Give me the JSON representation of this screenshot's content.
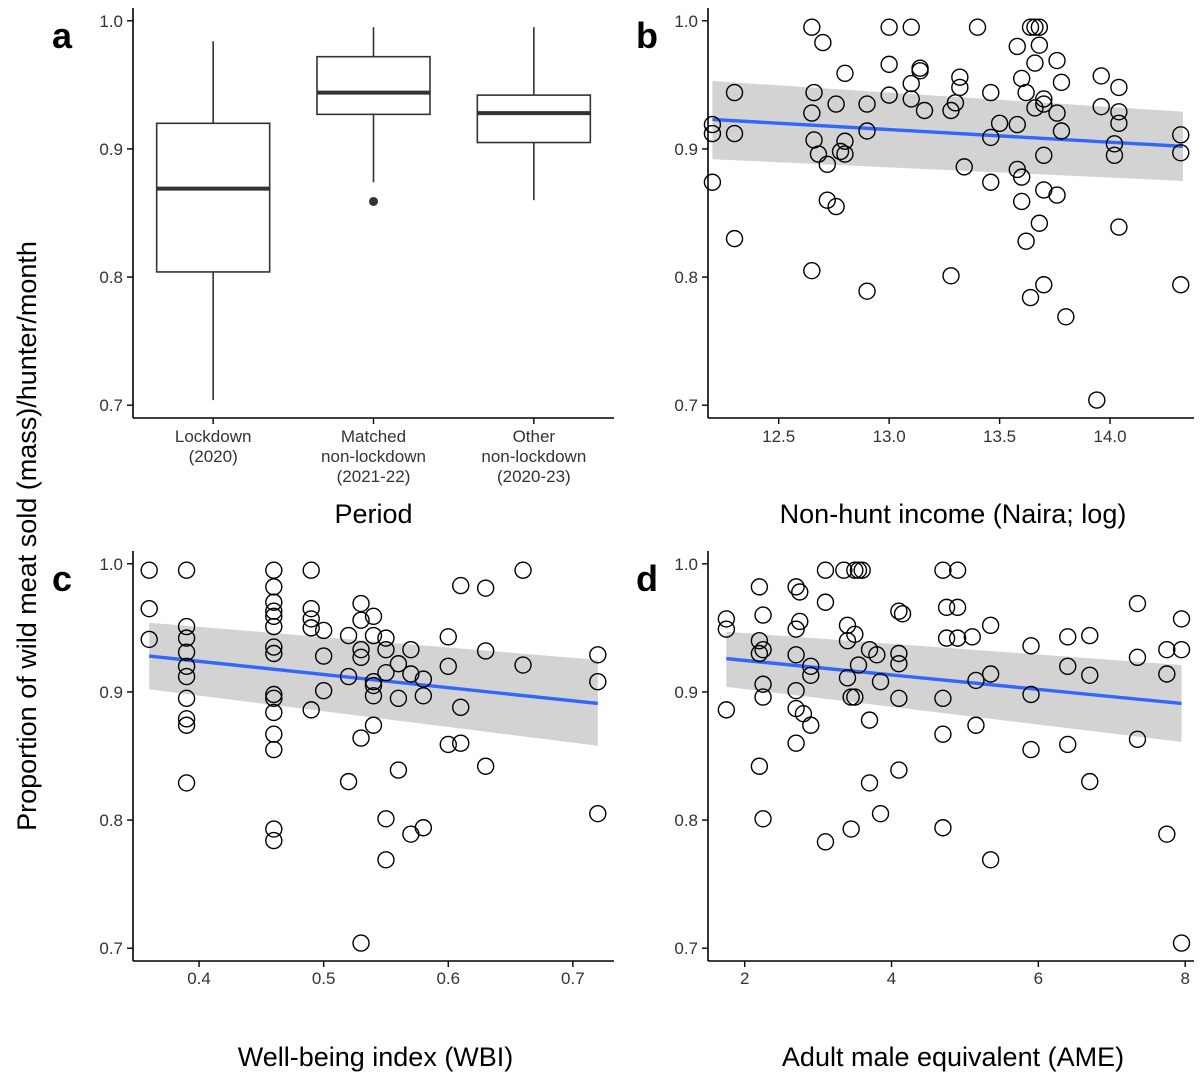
{
  "figure": {
    "ylabel": "Proportion of wild meat sold (mass)/hunter/month"
  },
  "chart_data": [
    {
      "panel_label": "a",
      "type": "box",
      "xlabel": "Period",
      "ylim": [
        0.69,
        1.01
      ],
      "yticks": [
        0.7,
        0.8,
        0.9,
        1.0
      ],
      "ytick_labels": [
        "0.7",
        "0.8",
        "0.9",
        "1.0"
      ],
      "categories": [
        {
          "lines": [
            "Lockdown",
            "(2020)"
          ]
        },
        {
          "lines": [
            "Matched",
            "non-lockdown",
            "(2021-22)"
          ]
        },
        {
          "lines": [
            "Other",
            "non-lockdown",
            "(2020-23)"
          ]
        }
      ],
      "boxes": [
        {
          "min": 0.704,
          "q1": 0.804,
          "median": 0.869,
          "q3": 0.92,
          "max": 0.984,
          "outliers": []
        },
        {
          "min": 0.874,
          "q1": 0.927,
          "median": 0.944,
          "q3": 0.972,
          "max": 0.995,
          "outliers": [
            0.859
          ]
        },
        {
          "min": 0.86,
          "q1": 0.905,
          "median": 0.928,
          "q3": 0.942,
          "max": 0.995,
          "outliers": []
        }
      ],
      "grid": false
    },
    {
      "panel_label": "b",
      "type": "scatter",
      "xlabel": "Non-hunt income (Naira; log)",
      "xlim": [
        12.18,
        14.38
      ],
      "ylim": [
        0.69,
        1.01
      ],
      "xticks": [
        12.5,
        13.0,
        13.5,
        14.0
      ],
      "xtick_labels": [
        "12.5",
        "13.0",
        "13.5",
        "14.0"
      ],
      "yticks": [
        0.7,
        0.8,
        0.9,
        1.0
      ],
      "ytick_labels": [
        "0.7",
        "0.8",
        "0.9",
        "1.0"
      ],
      "fit": {
        "x": [
          12.2,
          14.33
        ],
        "y": [
          0.923,
          0.902
        ],
        "ci_lower": [
          0.892,
          0.875
        ],
        "ci_upper": [
          0.953,
          0.929
        ]
      },
      "points": [
        [
          12.2,
          0.919
        ],
        [
          12.2,
          0.912
        ],
        [
          12.2,
          0.874
        ],
        [
          12.3,
          0.944
        ],
        [
          12.3,
          0.912
        ],
        [
          12.3,
          0.83
        ],
        [
          12.65,
          0.995
        ],
        [
          12.7,
          0.983
        ],
        [
          12.66,
          0.944
        ],
        [
          12.65,
          0.928
        ],
        [
          12.66,
          0.907
        ],
        [
          12.68,
          0.896
        ],
        [
          12.72,
          0.888
        ],
        [
          12.72,
          0.86
        ],
        [
          12.76,
          0.855
        ],
        [
          12.76,
          0.935
        ],
        [
          12.78,
          0.898
        ],
        [
          12.8,
          0.906
        ],
        [
          12.8,
          0.896
        ],
        [
          12.8,
          0.959
        ],
        [
          12.65,
          0.805
        ],
        [
          12.9,
          0.935
        ],
        [
          12.9,
          0.914
        ],
        [
          12.9,
          0.789
        ],
        [
          13.0,
          0.995
        ],
        [
          13.0,
          0.966
        ],
        [
          13.0,
          0.942
        ],
        [
          13.1,
          0.995
        ],
        [
          13.1,
          0.951
        ],
        [
          13.14,
          0.963
        ],
        [
          13.14,
          0.961
        ],
        [
          13.16,
          0.93
        ],
        [
          13.1,
          0.939
        ],
        [
          13.28,
          0.801
        ],
        [
          13.32,
          0.956
        ],
        [
          13.32,
          0.948
        ],
        [
          13.3,
          0.936
        ],
        [
          13.28,
          0.93
        ],
        [
          13.34,
          0.886
        ],
        [
          13.4,
          0.995
        ],
        [
          13.46,
          0.944
        ],
        [
          13.5,
          0.92
        ],
        [
          13.46,
          0.909
        ],
        [
          13.46,
          0.874
        ],
        [
          13.58,
          0.98
        ],
        [
          13.6,
          0.955
        ],
        [
          13.62,
          0.944
        ],
        [
          13.64,
          0.995
        ],
        [
          13.66,
          0.995
        ],
        [
          13.68,
          0.995
        ],
        [
          13.68,
          0.981
        ],
        [
          13.66,
          0.967
        ],
        [
          13.7,
          0.939
        ],
        [
          13.7,
          0.935
        ],
        [
          13.66,
          0.932
        ],
        [
          13.58,
          0.919
        ],
        [
          13.58,
          0.884
        ],
        [
          13.6,
          0.878
        ],
        [
          13.6,
          0.859
        ],
        [
          13.7,
          0.895
        ],
        [
          13.7,
          0.868
        ],
        [
          13.68,
          0.842
        ],
        [
          13.62,
          0.828
        ],
        [
          13.64,
          0.784
        ],
        [
          13.7,
          0.794
        ],
        [
          13.76,
          0.969
        ],
        [
          13.78,
          0.952
        ],
        [
          13.76,
          0.928
        ],
        [
          13.78,
          0.914
        ],
        [
          13.76,
          0.864
        ],
        [
          13.8,
          0.769
        ],
        [
          13.96,
          0.957
        ],
        [
          13.96,
          0.933
        ],
        [
          13.94,
          0.704
        ],
        [
          14.04,
          0.948
        ],
        [
          14.04,
          0.929
        ],
        [
          14.04,
          0.92
        ],
        [
          14.02,
          0.904
        ],
        [
          14.02,
          0.895
        ],
        [
          14.04,
          0.839
        ],
        [
          14.32,
          0.911
        ],
        [
          14.32,
          0.897
        ],
        [
          14.32,
          0.794
        ]
      ],
      "grid": false
    },
    {
      "panel_label": "c",
      "type": "scatter",
      "xlabel": "Well-being index (WBI)",
      "xlim": [
        0.347,
        0.733
      ],
      "ylim": [
        0.69,
        1.01
      ],
      "xticks": [
        0.4,
        0.5,
        0.6,
        0.7
      ],
      "xtick_labels": [
        "0.4",
        "0.5",
        "0.6",
        "0.7"
      ],
      "yticks": [
        0.7,
        0.8,
        0.9,
        1.0
      ],
      "ytick_labels": [
        "0.7",
        "0.8",
        "0.9",
        "1.0"
      ],
      "fit": {
        "x": [
          0.36,
          0.72
        ],
        "y": [
          0.928,
          0.891
        ],
        "ci_lower": [
          0.902,
          0.858
        ],
        "ci_upper": [
          0.954,
          0.925
        ]
      },
      "points": [
        [
          0.36,
          0.995
        ],
        [
          0.36,
          0.965
        ],
        [
          0.36,
          0.941
        ],
        [
          0.39,
          0.995
        ],
        [
          0.39,
          0.951
        ],
        [
          0.39,
          0.942
        ],
        [
          0.39,
          0.931
        ],
        [
          0.39,
          0.92
        ],
        [
          0.39,
          0.912
        ],
        [
          0.39,
          0.895
        ],
        [
          0.39,
          0.879
        ],
        [
          0.39,
          0.874
        ],
        [
          0.39,
          0.829
        ],
        [
          0.46,
          0.995
        ],
        [
          0.46,
          0.982
        ],
        [
          0.46,
          0.97
        ],
        [
          0.46,
          0.963
        ],
        [
          0.46,
          0.959
        ],
        [
          0.46,
          0.951
        ],
        [
          0.46,
          0.935
        ],
        [
          0.46,
          0.93
        ],
        [
          0.46,
          0.898
        ],
        [
          0.46,
          0.895
        ],
        [
          0.46,
          0.884
        ],
        [
          0.46,
          0.867
        ],
        [
          0.46,
          0.855
        ],
        [
          0.46,
          0.793
        ],
        [
          0.46,
          0.784
        ],
        [
          0.49,
          0.995
        ],
        [
          0.49,
          0.965
        ],
        [
          0.49,
          0.957
        ],
        [
          0.49,
          0.95
        ],
        [
          0.49,
          0.886
        ],
        [
          0.5,
          0.948
        ],
        [
          0.5,
          0.928
        ],
        [
          0.5,
          0.901
        ],
        [
          0.52,
          0.944
        ],
        [
          0.52,
          0.912
        ],
        [
          0.52,
          0.83
        ],
        [
          0.53,
          0.969
        ],
        [
          0.53,
          0.956
        ],
        [
          0.53,
          0.933
        ],
        [
          0.53,
          0.927
        ],
        [
          0.53,
          0.864
        ],
        [
          0.53,
          0.704
        ],
        [
          0.54,
          0.959
        ],
        [
          0.54,
          0.944
        ],
        [
          0.54,
          0.908
        ],
        [
          0.54,
          0.905
        ],
        [
          0.54,
          0.897
        ],
        [
          0.54,
          0.874
        ],
        [
          0.55,
          0.942
        ],
        [
          0.55,
          0.933
        ],
        [
          0.55,
          0.915
        ],
        [
          0.55,
          0.801
        ],
        [
          0.55,
          0.769
        ],
        [
          0.56,
          0.922
        ],
        [
          0.56,
          0.895
        ],
        [
          0.56,
          0.839
        ],
        [
          0.57,
          0.933
        ],
        [
          0.57,
          0.914
        ],
        [
          0.57,
          0.789
        ],
        [
          0.58,
          0.91
        ],
        [
          0.58,
          0.897
        ],
        [
          0.58,
          0.794
        ],
        [
          0.6,
          0.943
        ],
        [
          0.6,
          0.92
        ],
        [
          0.6,
          0.859
        ],
        [
          0.61,
          0.983
        ],
        [
          0.61,
          0.888
        ],
        [
          0.61,
          0.86
        ],
        [
          0.63,
          0.981
        ],
        [
          0.63,
          0.932
        ],
        [
          0.63,
          0.842
        ],
        [
          0.66,
          0.995
        ],
        [
          0.66,
          0.921
        ],
        [
          0.72,
          0.929
        ],
        [
          0.72,
          0.908
        ],
        [
          0.72,
          0.805
        ]
      ],
      "grid": false
    },
    {
      "panel_label": "d",
      "type": "scatter",
      "xlabel": "Adult male equivalent (AME)",
      "xlim": [
        1.5,
        8.12
      ],
      "ylim": [
        0.69,
        1.01
      ],
      "xticks": [
        2,
        4,
        6,
        8
      ],
      "xtick_labels": [
        "2",
        "4",
        "6",
        "8"
      ],
      "yticks": [
        0.7,
        0.8,
        0.9,
        1.0
      ],
      "ytick_labels": [
        "0.7",
        "0.8",
        "0.9",
        "1.0"
      ],
      "fit": {
        "x": [
          1.75,
          7.95
        ],
        "y": [
          0.926,
          0.891
        ],
        "ci_lower": [
          0.904,
          0.861
        ],
        "ci_upper": [
          0.947,
          0.921
        ]
      },
      "points": [
        [
          1.75,
          0.957
        ],
        [
          1.75,
          0.949
        ],
        [
          1.75,
          0.886
        ],
        [
          2.2,
          0.982
        ],
        [
          2.25,
          0.96
        ],
        [
          2.2,
          0.94
        ],
        [
          2.25,
          0.933
        ],
        [
          2.2,
          0.93
        ],
        [
          2.25,
          0.906
        ],
        [
          2.25,
          0.896
        ],
        [
          2.2,
          0.842
        ],
        [
          2.25,
          0.801
        ],
        [
          2.7,
          0.982
        ],
        [
          2.75,
          0.978
        ],
        [
          2.75,
          0.955
        ],
        [
          2.7,
          0.949
        ],
        [
          2.7,
          0.929
        ],
        [
          2.9,
          0.92
        ],
        [
          2.9,
          0.913
        ],
        [
          2.7,
          0.901
        ],
        [
          2.7,
          0.887
        ],
        [
          2.8,
          0.883
        ],
        [
          2.9,
          0.874
        ],
        [
          2.7,
          0.86
        ],
        [
          3.1,
          0.995
        ],
        [
          3.1,
          0.97
        ],
        [
          3.1,
          0.783
        ],
        [
          3.35,
          0.995
        ],
        [
          3.5,
          0.995
        ],
        [
          3.6,
          0.995
        ],
        [
          3.55,
          0.995
        ],
        [
          3.4,
          0.952
        ],
        [
          3.5,
          0.945
        ],
        [
          3.4,
          0.94
        ],
        [
          3.7,
          0.933
        ],
        [
          3.8,
          0.929
        ],
        [
          3.55,
          0.921
        ],
        [
          3.4,
          0.911
        ],
        [
          3.5,
          0.896
        ],
        [
          3.45,
          0.896
        ],
        [
          3.7,
          0.878
        ],
        [
          3.7,
          0.829
        ],
        [
          3.45,
          0.793
        ],
        [
          3.85,
          0.805
        ],
        [
          3.85,
          0.908
        ],
        [
          4.1,
          0.963
        ],
        [
          4.15,
          0.961
        ],
        [
          4.1,
          0.93
        ],
        [
          4.1,
          0.922
        ],
        [
          4.1,
          0.895
        ],
        [
          4.1,
          0.839
        ],
        [
          4.7,
          0.995
        ],
        [
          4.9,
          0.995
        ],
        [
          4.75,
          0.966
        ],
        [
          4.9,
          0.966
        ],
        [
          4.75,
          0.942
        ],
        [
          4.9,
          0.942
        ],
        [
          5.1,
          0.943
        ],
        [
          5.35,
          0.952
        ],
        [
          4.7,
          0.895
        ],
        [
          4.7,
          0.867
        ],
        [
          4.7,
          0.794
        ],
        [
          5.15,
          0.909
        ],
        [
          5.15,
          0.874
        ],
        [
          5.35,
          0.914
        ],
        [
          5.35,
          0.769
        ],
        [
          5.9,
          0.936
        ],
        [
          5.9,
          0.898
        ],
        [
          5.9,
          0.855
        ],
        [
          6.4,
          0.943
        ],
        [
          6.4,
          0.92
        ],
        [
          6.4,
          0.859
        ],
        [
          6.7,
          0.944
        ],
        [
          6.7,
          0.913
        ],
        [
          6.7,
          0.83
        ],
        [
          7.35,
          0.969
        ],
        [
          7.35,
          0.927
        ],
        [
          7.35,
          0.863
        ],
        [
          7.75,
          0.933
        ],
        [
          7.75,
          0.914
        ],
        [
          7.75,
          0.789
        ],
        [
          7.95,
          0.957
        ],
        [
          7.95,
          0.933
        ],
        [
          7.95,
          0.704
        ]
      ],
      "grid": false
    }
  ]
}
